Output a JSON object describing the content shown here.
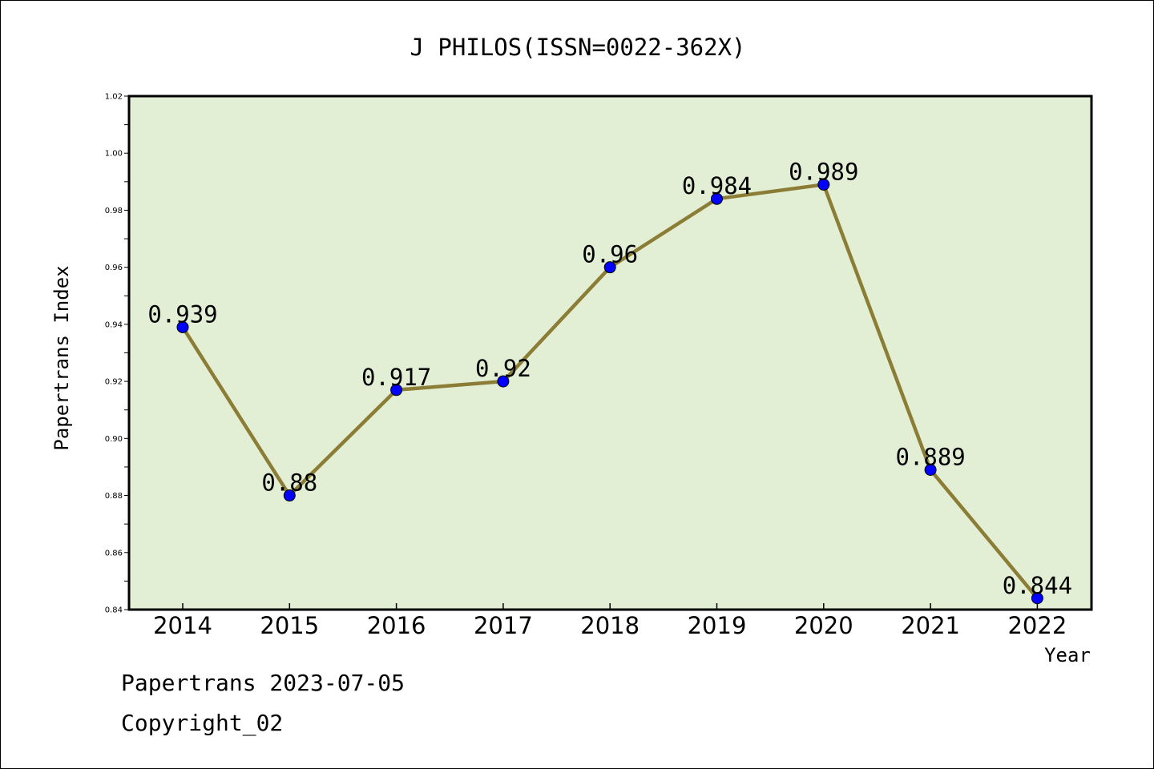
{
  "chart_data": {
    "type": "line",
    "title": "J PHILOS(ISSN=0022-362X)",
    "xlabel": "Year",
    "ylabel": "Papertrans Index",
    "categories": [
      "2014",
      "2015",
      "2016",
      "2017",
      "2018",
      "2019",
      "2020",
      "2021",
      "2022"
    ],
    "series": [
      {
        "values": [
          0.939,
          0.88,
          0.917,
          0.92,
          0.96,
          0.984,
          0.989,
          0.889,
          0.844
        ],
        "data_labels": [
          "0.939",
          "0.88",
          "0.917",
          "0.92",
          "0.96",
          "0.984",
          "0.989",
          "0.889",
          "0.844"
        ]
      }
    ],
    "ylim": [
      0.84,
      1.02
    ],
    "yticks": [
      "0.84",
      "0.86",
      "0.88",
      "0.90",
      "0.92",
      "0.94",
      "0.96",
      "0.98",
      "1.00",
      "1.02"
    ],
    "grid": false,
    "colors": {
      "plot_background": "#e2efd5",
      "line": "#8b7d35",
      "marker": "#0000ff"
    }
  },
  "footer": {
    "date_line": "Papertrans 2023-07-05",
    "copyright_line": "Copyright_02"
  }
}
